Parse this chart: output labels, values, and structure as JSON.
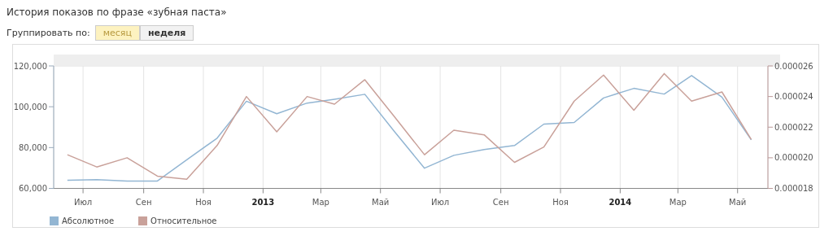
{
  "chart_data": {
    "type": "line",
    "title": "История показов по фразе «зубная паста»",
    "annotations": [
      "Группировать по:",
      "месяц",
      "неделя"
    ],
    "x": [
      "2012-06-15",
      "2012-07-15",
      "2012-08-15",
      "2012-09-15",
      "2012-10-15",
      "2012-11-15",
      "2012-12-15",
      "2013-01-15",
      "2013-02-15",
      "2013-03-15",
      "2013-04-15",
      "2013-05-15",
      "2013-06-15",
      "2013-07-15",
      "2013-08-15",
      "2013-09-15",
      "2013-10-15",
      "2013-11-15",
      "2013-12-15",
      "2014-01-15",
      "2014-02-15",
      "2014-03-15",
      "2014-04-15",
      "2014-05-15"
    ],
    "series": [
      {
        "name": "Абсолютное",
        "color": "#93b6d3",
        "values": [
          64000,
          64300,
          63600,
          63600,
          74000,
          84600,
          102700,
          96600,
          101800,
          103700,
          106100,
          88000,
          69900,
          76200,
          79000,
          81000,
          91500,
          92300,
          104300,
          109000,
          106200,
          115300,
          104700,
          83800
        ]
      },
      {
        "name": "Относительное",
        "color": "#c9a19a",
        "axis": "y2",
        "values": [
          2.02e-05,
          1.94e-05,
          2e-05,
          1.88e-05,
          1.86e-05,
          2.08e-05,
          2.4e-05,
          2.17e-05,
          2.4e-05,
          2.35e-05,
          2.51e-05,
          2.27e-05,
          2.02e-05,
          2.18e-05,
          2.15e-05,
          1.97e-05,
          2.07e-05,
          2.37e-05,
          2.54e-05,
          2.31e-05,
          2.55e-05,
          2.37e-05,
          2.43e-05,
          2.12e-05
        ]
      }
    ],
    "xlim": [
      "2012-06-01",
      "2014-06-01"
    ],
    "xticks": [
      {
        "value": "2012-07-01",
        "label": "Июл"
      },
      {
        "value": "2012-09-01",
        "label": "Сен"
      },
      {
        "value": "2012-11-01",
        "label": "Ноя"
      },
      {
        "value": "2013-01-01",
        "label": "2013"
      },
      {
        "value": "2013-03-01",
        "label": "Мар"
      },
      {
        "value": "2013-05-01",
        "label": "Май"
      },
      {
        "value": "2013-07-01",
        "label": "Июл"
      },
      {
        "value": "2013-09-01",
        "label": "Сен"
      },
      {
        "value": "2013-11-01",
        "label": "Ноя"
      },
      {
        "value": "2014-01-01",
        "label": "2014"
      },
      {
        "value": "2014-03-01",
        "label": "Мар"
      },
      {
        "value": "2014-05-01",
        "label": "Май"
      }
    ],
    "ylim": [
      60000,
      120000
    ],
    "yticks": [
      {
        "value": 60000,
        "label": "60,000"
      },
      {
        "value": 80000,
        "label": "80,000"
      },
      {
        "value": 100000,
        "label": "100,000"
      },
      {
        "value": 120000,
        "label": "120,000"
      }
    ],
    "y2lim": [
      1.8e-05,
      2.6e-05
    ],
    "y2ticks": [
      {
        "value": 1.8e-05,
        "label": "0.000018"
      },
      {
        "value": 2e-05,
        "label": "0.000020"
      },
      {
        "value": 2.2e-05,
        "label": "0.000022"
      },
      {
        "value": 2.4e-05,
        "label": "0.000024"
      },
      {
        "value": 2.6e-05,
        "label": "0.000026"
      }
    ],
    "grid": "x",
    "legend": "bottom left",
    "marker": "none",
    "line_style": "solid"
  }
}
